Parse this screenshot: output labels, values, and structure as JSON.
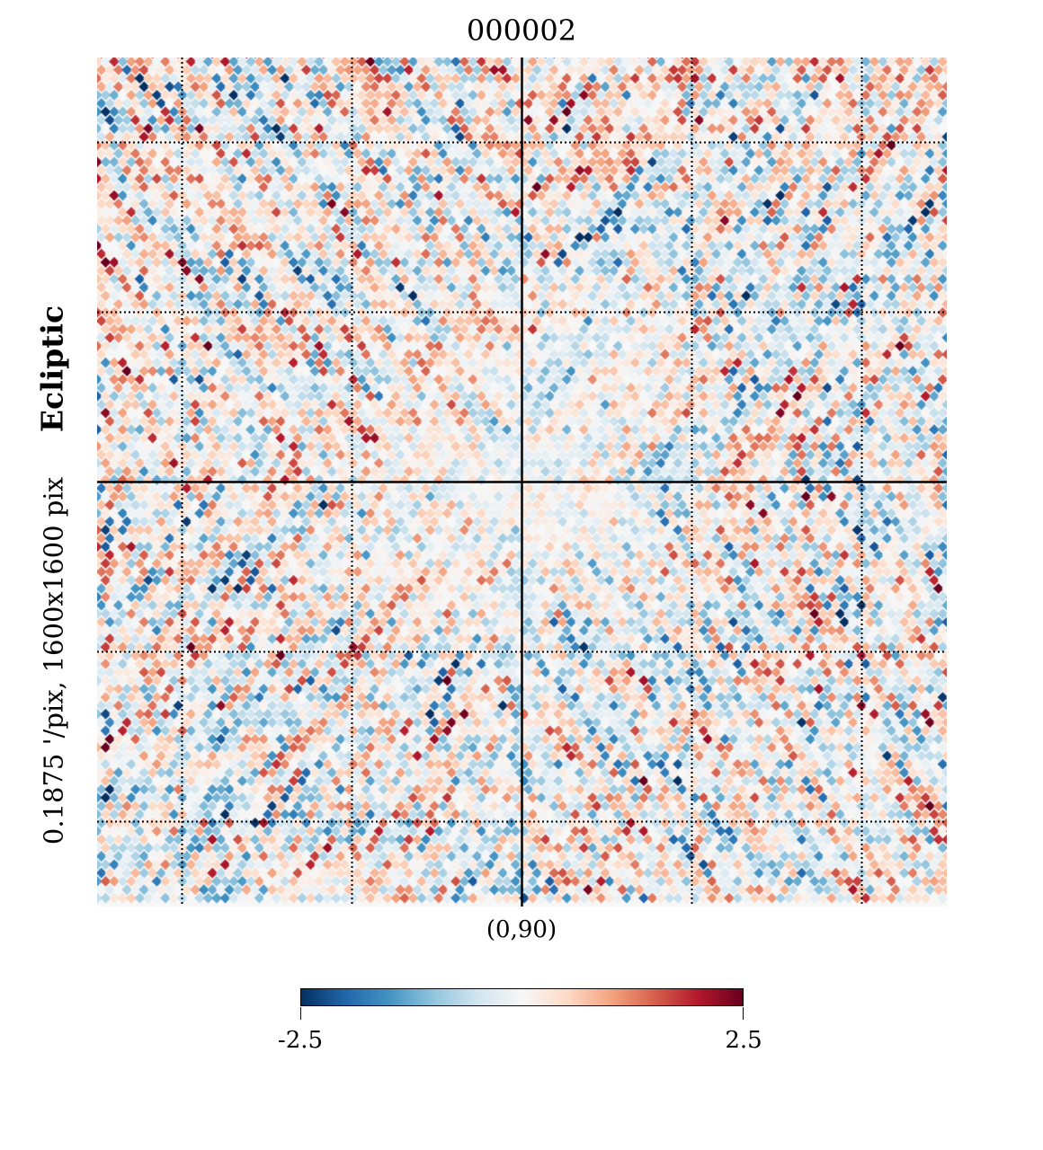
{
  "chart_data": {
    "type": "heatmap",
    "title": "000002",
    "projection_center_label": "(0,90)",
    "side_label": {
      "resolution": "0.1875 '/pix,",
      "size": "1600x1600 pix",
      "coordinate_system": "Ecliptic"
    },
    "colorbar": {
      "colormap": "RdBu_r",
      "min": -2.5,
      "max": 2.5,
      "min_label": "-2.5",
      "max_label": "2.5",
      "colors": [
        "#053061",
        "#2166ac",
        "#4393c3",
        "#92c5de",
        "#d1e5f0",
        "#f7f7f7",
        "#fddbc7",
        "#f4a582",
        "#d6604d",
        "#b2182b",
        "#67001f"
      ]
    },
    "graticule": {
      "style": "dotted",
      "color": "#000000"
    },
    "axes_cross": {
      "color": "#000000"
    }
  }
}
